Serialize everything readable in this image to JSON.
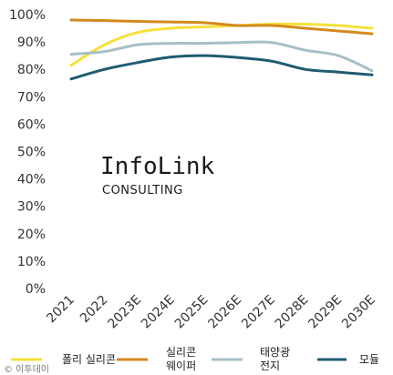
{
  "chart_data": {
    "type": "line",
    "categories": [
      "2021",
      "2022",
      "2023E",
      "2024E",
      "2025E",
      "2026E",
      "2027E",
      "2028E",
      "2029E",
      "2030E"
    ],
    "ylim": [
      0,
      100
    ],
    "yticks": [
      "0%",
      "10%",
      "20%",
      "30%",
      "40%",
      "50%",
      "60%",
      "70%",
      "80%",
      "90%",
      "100%"
    ],
    "grid": false,
    "legend_position": "bottom",
    "series": [
      {
        "name": "폴리 실리콘",
        "color": "#f5e13a",
        "values": [
          81.5,
          89,
          93.5,
          95,
          95.5,
          96,
          96.5,
          96.5,
          96,
          95
        ]
      },
      {
        "name": "실리콘 웨이퍼",
        "color": "#d4891e",
        "values": [
          98,
          97.8,
          97.5,
          97.3,
          97,
          96,
          96,
          95,
          94,
          93
        ]
      },
      {
        "name": "태양광 전지",
        "color": "#a8bfc7",
        "values": [
          85.5,
          86.5,
          89,
          89.5,
          89.5,
          89.8,
          89.8,
          87,
          85,
          79.5
        ]
      },
      {
        "name": "모듈",
        "color": "#1f5b72",
        "values": [
          76.5,
          80,
          82.5,
          84.5,
          85,
          84.3,
          83,
          80,
          79,
          78
        ]
      }
    ]
  },
  "legend": {
    "items": [
      {
        "line1": "폴리 실리콘",
        "line2": ""
      },
      {
        "line1": "실리콘",
        "line2": "웨이퍼"
      },
      {
        "line1": "태양광",
        "line2": "전지"
      },
      {
        "line1": "모듈",
        "line2": ""
      }
    ]
  },
  "logo": {
    "main": "InfoLink",
    "sub": "CONSULTING"
  },
  "watermark": {
    "text": "© 이투데이"
  }
}
